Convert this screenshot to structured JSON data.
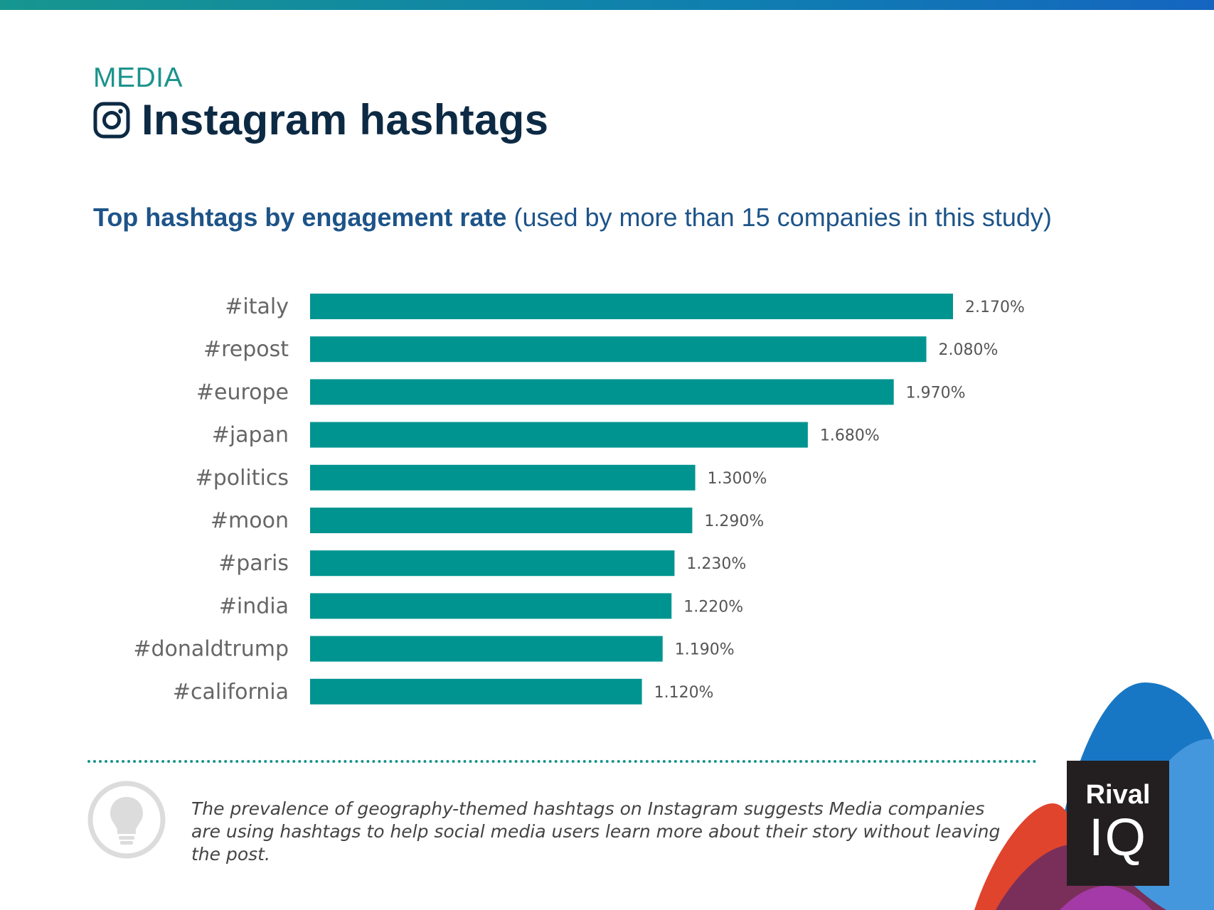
{
  "header": {
    "category": "MEDIA",
    "title": "Instagram hashtags",
    "subtitle_bold": "Top hashtags by engagement rate",
    "subtitle_rest": "(used by more than 15 companies in this study)"
  },
  "chart_data": {
    "type": "bar",
    "orientation": "horizontal",
    "title": "Top hashtags by engagement rate",
    "categories": [
      "#italy",
      "#repost",
      "#europe",
      "#japan",
      "#politics",
      "#moon",
      "#paris",
      "#india",
      "#donaldtrump",
      "#california"
    ],
    "values": [
      2.17,
      2.08,
      1.97,
      1.68,
      1.3,
      1.29,
      1.23,
      1.22,
      1.19,
      1.12
    ],
    "value_labels": [
      "2.170%",
      "2.080%",
      "1.970%",
      "1.680%",
      "1.300%",
      "1.290%",
      "1.230%",
      "1.220%",
      "1.190%",
      "1.120%"
    ],
    "xlim": [
      0,
      2.17
    ],
    "color": "#009490",
    "grid": false
  },
  "footer": {
    "note": "The prevalence of geography-themed hashtags on Instagram suggests Media companies are using hashtags to help social media users learn more about their story without leaving the post.",
    "logo_line1": "Rival",
    "logo_line2": "IQ"
  },
  "icons": {
    "title_icon": "instagram-icon",
    "note_icon": "lightbulb-icon"
  },
  "colors": {
    "accent": "#1a938c",
    "title": "#0d2a44",
    "subtitle": "#1d5489",
    "bar": "#009490"
  }
}
